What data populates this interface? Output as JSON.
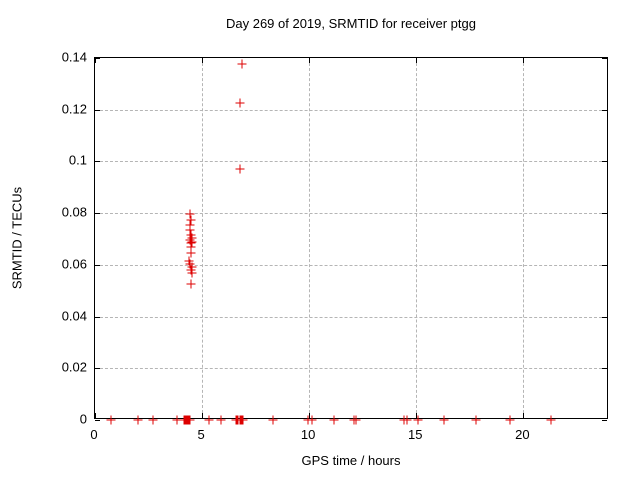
{
  "chart_data": {
    "type": "scatter",
    "title": "Day 269 of 2019, SRMTID for receiver ptgg",
    "xlabel": "GPS time / hours",
    "ylabel": "SRMTID / TECUs",
    "xlim": [
      0,
      24
    ],
    "ylim": [
      0,
      0.14
    ],
    "xticks": [
      0,
      5,
      10,
      15,
      20
    ],
    "yticks": [
      0,
      0.02,
      0.04,
      0.06,
      0.08,
      0.1,
      0.12,
      0.14
    ],
    "grid": "dashed gray lines at major ticks, ticks mirrored on all four borders",
    "legend_position": "none",
    "marker": "plus",
    "marker_color": "#dd0000",
    "background_color": "#ffffff",
    "series": [
      {
        "name": "SRMTID",
        "points": [
          [
            0.75,
            0
          ],
          [
            2.0,
            0
          ],
          [
            2.7,
            0
          ],
          [
            3.85,
            0
          ],
          [
            4.15,
            0
          ],
          [
            4.2,
            0
          ],
          [
            4.25,
            0
          ],
          [
            4.3,
            0
          ],
          [
            4.35,
            0
          ],
          [
            4.4,
            0
          ],
          [
            4.45,
            0
          ],
          [
            5.3,
            0
          ],
          [
            5.9,
            0
          ],
          [
            6.6,
            0
          ],
          [
            6.65,
            0
          ],
          [
            6.7,
            0
          ],
          [
            6.75,
            0
          ],
          [
            6.8,
            0
          ],
          [
            6.85,
            0
          ],
          [
            6.9,
            0
          ],
          [
            8.3,
            0
          ],
          [
            9.95,
            0
          ],
          [
            10.15,
            0
          ],
          [
            11.15,
            0
          ],
          [
            12.1,
            0
          ],
          [
            12.2,
            0
          ],
          [
            14.45,
            0
          ],
          [
            14.55,
            0
          ],
          [
            15.1,
            0
          ],
          [
            16.3,
            0
          ],
          [
            17.8,
            0
          ],
          [
            19.4,
            0
          ],
          [
            21.3,
            0
          ],
          [
            4.45,
            0.0795
          ],
          [
            4.5,
            0.0775
          ],
          [
            4.45,
            0.0755
          ],
          [
            4.42,
            0.0735
          ],
          [
            4.48,
            0.0715
          ],
          [
            4.52,
            0.0705
          ],
          [
            4.45,
            0.0697
          ],
          [
            4.55,
            0.069
          ],
          [
            4.48,
            0.0683
          ],
          [
            4.5,
            0.067
          ],
          [
            4.5,
            0.0645
          ],
          [
            4.4,
            0.0615
          ],
          [
            4.45,
            0.0602
          ],
          [
            4.52,
            0.0592
          ],
          [
            4.46,
            0.0582
          ],
          [
            4.55,
            0.057
          ],
          [
            4.5,
            0.0525
          ],
          [
            6.78,
            0.097
          ],
          [
            6.79,
            0.1225
          ],
          [
            6.87,
            0.1375
          ]
        ]
      }
    ]
  }
}
